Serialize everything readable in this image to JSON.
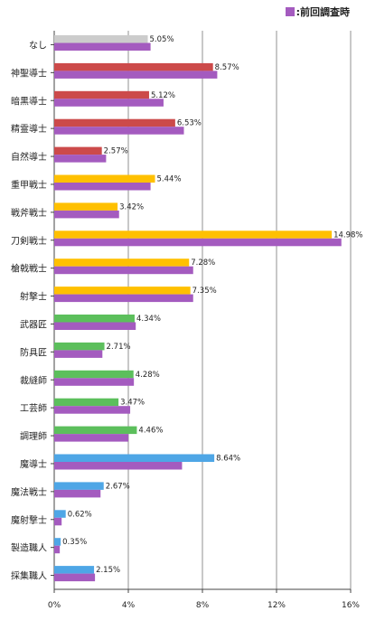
{
  "chart_data": {
    "type": "bar",
    "orientation": "horizontal",
    "categories": [
      "なし",
      "神聖導士",
      "暗黒導士",
      "精霊導士",
      "自然導士",
      "重甲戦士",
      "戦斧戦士",
      "刀剣戦士",
      "槍戟戦士",
      "射撃士",
      "武器匠",
      "防具匠",
      "裁縫師",
      "工芸師",
      "調理師",
      "魔導士",
      "魔法戦士",
      "魔射撃士",
      "製造職人",
      "採集職人"
    ],
    "series": [
      {
        "values": [
          5.05,
          8.57,
          5.12,
          6.53,
          2.57,
          5.44,
          3.42,
          14.98,
          7.28,
          7.35,
          4.34,
          2.71,
          4.28,
          3.47,
          4.46,
          8.64,
          2.67,
          0.62,
          0.35,
          2.15
        ],
        "data_labels": [
          "5.05%",
          "8.57%",
          "5.12%",
          "6.53%",
          "2.57%",
          "5.44%",
          "3.42%",
          "14.98%",
          "7.28%",
          "7.35%",
          "4.34%",
          "2.71%",
          "4.28%",
          "3.47%",
          "4.46%",
          "8.64%",
          "2.67%",
          "0.62%",
          "0.35%",
          "2.15%"
        ],
        "bar_colors": [
          "#cccccc",
          "#cc4a4a",
          "#cc4a4a",
          "#cc4a4a",
          "#cc4a4a",
          "#ffc000",
          "#ffc000",
          "#ffc000",
          "#ffc000",
          "#ffc000",
          "#5cbf5c",
          "#5cbf5c",
          "#5cbf5c",
          "#5cbf5c",
          "#5cbf5c",
          "#4ea6e6",
          "#4ea6e6",
          "#4ea6e6",
          "#4ea6e6",
          "#4ea6e6"
        ]
      },
      {
        "name": "前回調査時",
        "color": "#a45bbf",
        "values": [
          5.2,
          8.8,
          5.9,
          7.0,
          2.8,
          5.2,
          3.5,
          15.5,
          7.5,
          7.5,
          4.4,
          2.6,
          4.3,
          4.1,
          4.0,
          6.9,
          2.5,
          0.4,
          0.3,
          2.2
        ]
      }
    ],
    "xlim": [
      0,
      16
    ],
    "x_ticks": [
      "0%",
      "4%",
      "8%",
      "12%",
      "16%"
    ],
    "x_tick_values": [
      0,
      4,
      8,
      12,
      16
    ],
    "grid": true,
    "legend_position": "top-right",
    "legend_label": "■:前回調査時"
  }
}
